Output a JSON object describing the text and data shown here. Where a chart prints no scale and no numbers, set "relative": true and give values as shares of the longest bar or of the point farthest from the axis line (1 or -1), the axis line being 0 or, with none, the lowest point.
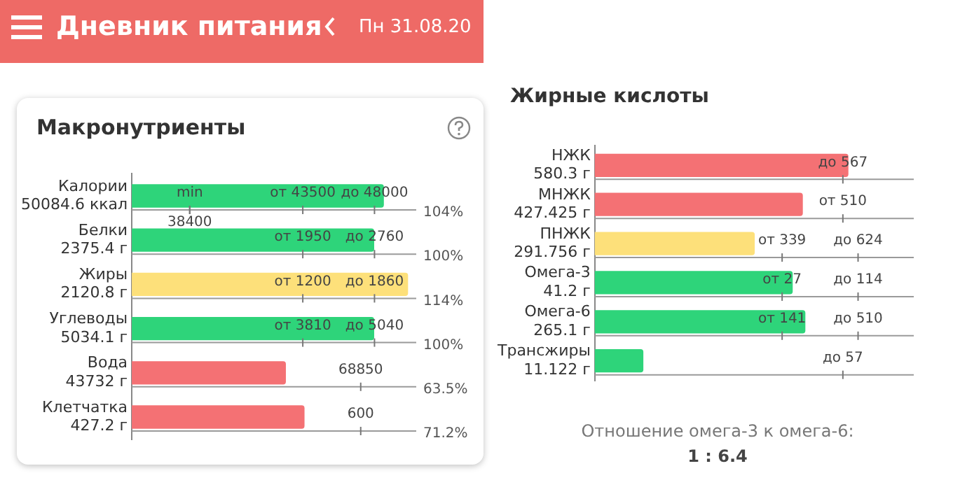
{
  "chart_data": [
    {
      "type": "bar",
      "orientation": "horizontal",
      "grid": true,
      "title": "Макронутриенты",
      "categories": [
        "Калории\n50084.6 ккал",
        "Белки\n2375.4 г",
        "Жиры\n2120.8 г",
        "Углеводы\n5034.1 г",
        "Вода\n43732 г",
        "Клетчатка\n427.2 г"
      ],
      "values": [
        104,
        100,
        114,
        100,
        63.5,
        71.2
      ],
      "colors": [
        "#2ed47a",
        "#2ed47a",
        "#fde07a",
        "#2ed47a",
        "#f47174",
        "#f47174"
      ],
      "value_labels": [
        "104%",
        "100%",
        "114%",
        "100%",
        "63.5%",
        "71.2%"
      ],
      "annotations": [
        "Дневник питания",
        "Пн 31.08.20",
        "min",
        "38400",
        "от 43500",
        "до 48000",
        "от 1950",
        "до 2760",
        "от 1200",
        "до 1860",
        "от 3810",
        "до 5040",
        "68850",
        "600"
      ]
    },
    {
      "type": "bar",
      "orientation": "horizontal",
      "relative": true,
      "grid": true,
      "title": "Жирные кислоты",
      "categories": [
        "НЖК\n580.3 г",
        "МНЖК\n427.425 г",
        "ПНЖК\n291.756 г",
        "Омега-3\n41.2 г",
        "Омега-6\n265.1 г",
        "Трансжиры\n11.122 г"
      ],
      "values": [
        1,
        0.82,
        0.63,
        0.78,
        0.83,
        0.19
      ],
      "colors": [
        "#f47174",
        "#f47174",
        "#fde07a",
        "#2ed47a",
        "#2ed47a",
        "#2ed47a"
      ],
      "annotations": [
        "Отношение омега-3 к омега-6:",
        "1 : 6.4",
        "до 567",
        "от 510",
        "от 339",
        "до 624",
        "от 27",
        "до 114",
        "от 141",
        "до 510",
        "до 57"
      ]
    }
  ]
}
